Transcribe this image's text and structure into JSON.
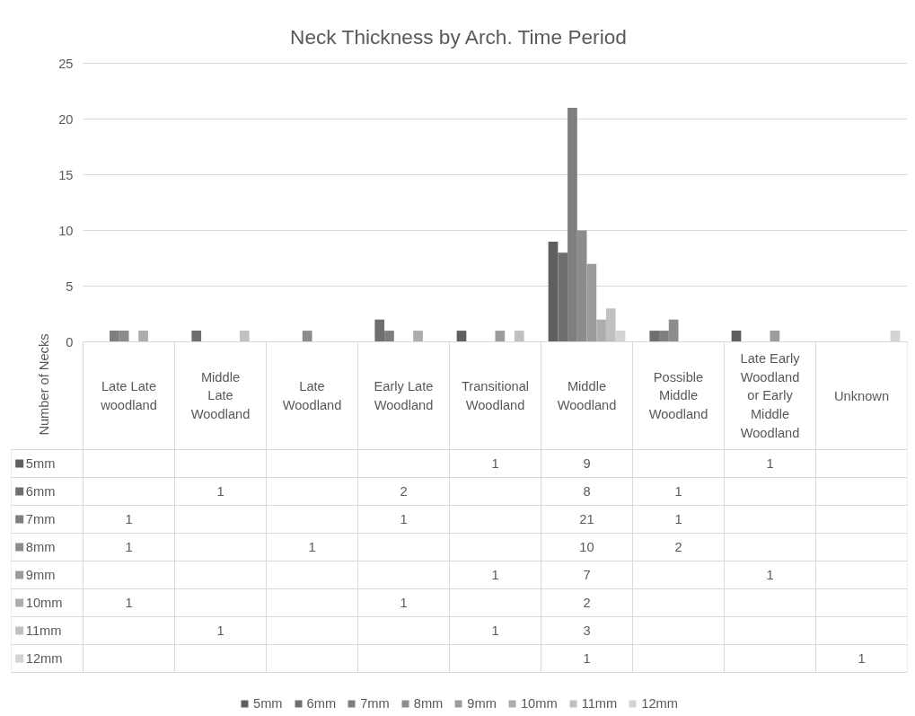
{
  "chart_data": {
    "type": "bar",
    "title": "Neck Thickness by Arch. Time Period",
    "ylabel": "Number of Necks",
    "categories": [
      "Late Late\nwoodland",
      "Middle\nLate\nWoodland",
      "Late\nWoodland",
      "Early Late\nWoodland",
      "Transitional\nWoodland",
      "Middle\nWoodland",
      "Possible\nMiddle\nWoodland",
      "Late Early\nWoodland\nor Early\nMiddle\nWoodland",
      "Unknown"
    ],
    "series": [
      {
        "name": "5mm",
        "color": "#5f5f5f",
        "values": [
          null,
          null,
          null,
          null,
          1,
          9,
          null,
          1,
          null
        ]
      },
      {
        "name": "6mm",
        "color": "#6f6f6f",
        "values": [
          null,
          1,
          null,
          2,
          null,
          8,
          1,
          null,
          null
        ]
      },
      {
        "name": "7mm",
        "color": "#7e7e7e",
        "values": [
          1,
          null,
          null,
          1,
          null,
          21,
          1,
          null,
          null
        ]
      },
      {
        "name": "8mm",
        "color": "#8c8c8c",
        "values": [
          1,
          null,
          1,
          null,
          null,
          10,
          2,
          null,
          null
        ]
      },
      {
        "name": "9mm",
        "color": "#9c9c9c",
        "values": [
          null,
          null,
          null,
          null,
          1,
          7,
          null,
          1,
          null
        ]
      },
      {
        "name": "10mm",
        "color": "#adadad",
        "values": [
          1,
          null,
          null,
          1,
          null,
          2,
          null,
          null,
          null
        ]
      },
      {
        "name": "11mm",
        "color": "#c0c0c0",
        "values": [
          null,
          1,
          null,
          null,
          1,
          3,
          null,
          null,
          null
        ]
      },
      {
        "name": "12mm",
        "color": "#d3d3d3",
        "values": [
          null,
          null,
          null,
          null,
          null,
          1,
          null,
          null,
          1
        ]
      }
    ],
    "ylim": [
      0,
      25
    ],
    "yticks": [
      0,
      5,
      10,
      15,
      20,
      25
    ],
    "grid": "y",
    "legend": "bottom",
    "data_labels": true
  }
}
